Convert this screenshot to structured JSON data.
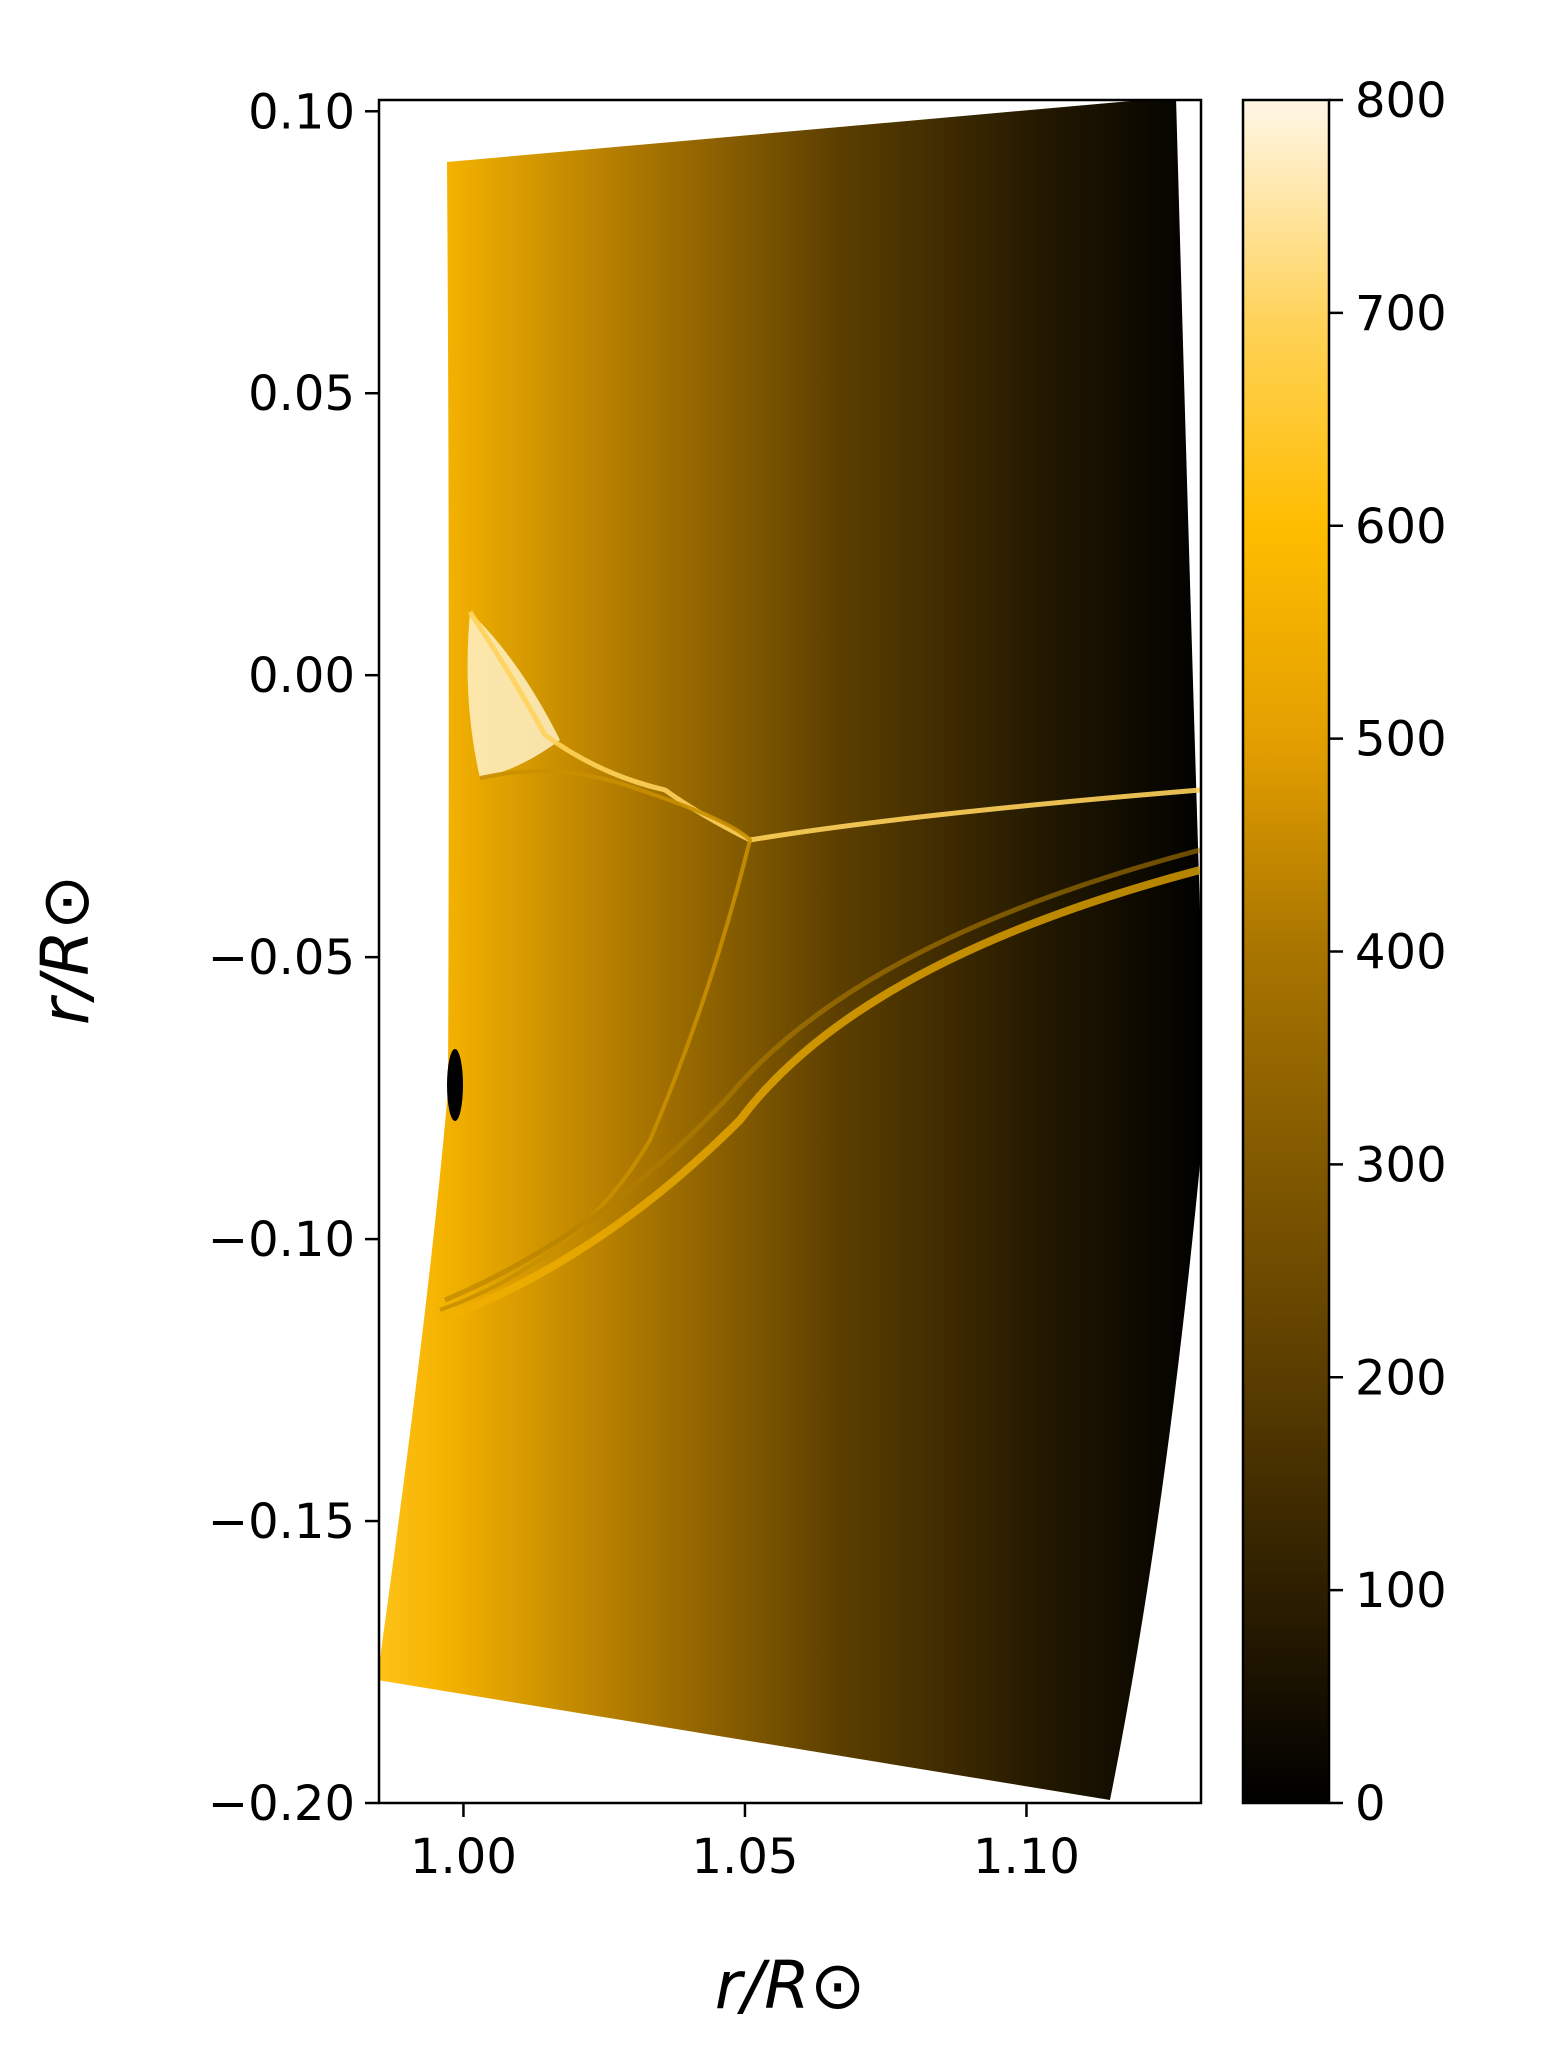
{
  "chart_data": {
    "type": "heatmap",
    "title": "",
    "xlabel": "r/R⊙",
    "ylabel": "r/R⊙",
    "xlim": [
      0.985,
      1.131
    ],
    "ylim": [
      -0.2,
      0.102
    ],
    "xticks": [
      {
        "value": 1.0,
        "label": "1.00"
      },
      {
        "value": 1.05,
        "label": "1.05"
      },
      {
        "value": 1.1,
        "label": "1.10"
      }
    ],
    "yticks": [
      {
        "value": 0.1,
        "label": "0.10"
      },
      {
        "value": 0.05,
        "label": "0.05"
      },
      {
        "value": 0.0,
        "label": "0.00"
      },
      {
        "value": -0.05,
        "label": "−0.05"
      },
      {
        "value": -0.1,
        "label": "−0.10"
      },
      {
        "value": -0.15,
        "label": "−0.15"
      },
      {
        "value": -0.2,
        "label": "−0.20"
      }
    ],
    "colorbar": {
      "range": [
        0,
        800
      ],
      "ticks": [
        {
          "value": 0,
          "label": "0"
        },
        {
          "value": 100,
          "label": "100"
        },
        {
          "value": 200,
          "label": "200"
        },
        {
          "value": 300,
          "label": "300"
        },
        {
          "value": 400,
          "label": "400"
        },
        {
          "value": 500,
          "label": "500"
        },
        {
          "value": 600,
          "label": "600"
        },
        {
          "value": 700,
          "label": "700"
        },
        {
          "value": 800,
          "label": "800"
        }
      ],
      "colors": [
        "#000000",
        "#5a3d00",
        "#a97500",
        "#e29e00",
        "#ffbd00",
        "#ffd35a",
        "#fff6e6"
      ]
    },
    "domain_corners": {
      "top_left": [
        0.996,
        0.091
      ],
      "top_right": [
        1.125,
        0.102
      ],
      "bottom_right": [
        1.111,
        -0.2
      ],
      "bottom_left": [
        0.984,
        -0.179
      ]
    },
    "grid": false
  }
}
